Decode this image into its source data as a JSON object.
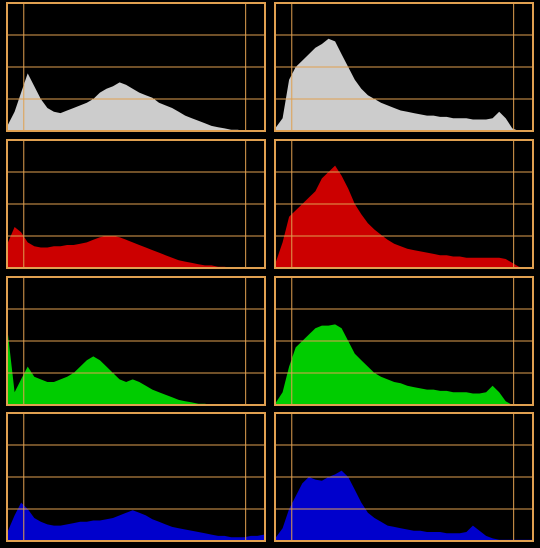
{
  "chart_data": [
    {
      "type": "area",
      "color": "#cccccc",
      "ylim": [
        0,
        100
      ],
      "yticks": [
        25,
        50,
        75
      ],
      "grid": true,
      "values": [
        5,
        15,
        30,
        45,
        35,
        25,
        18,
        15,
        14,
        16,
        18,
        20,
        22,
        25,
        30,
        33,
        35,
        38,
        36,
        33,
        30,
        28,
        26,
        22,
        20,
        18,
        15,
        12,
        10,
        8,
        6,
        4,
        3,
        2,
        1,
        1,
        0,
        0,
        0,
        0
      ]
    },
    {
      "type": "area",
      "color": "#cccccc",
      "ylim": [
        0,
        100
      ],
      "yticks": [
        25,
        50,
        75
      ],
      "grid": true,
      "values": [
        3,
        10,
        40,
        50,
        55,
        60,
        65,
        68,
        72,
        70,
        60,
        50,
        40,
        33,
        28,
        25,
        22,
        20,
        18,
        16,
        15,
        14,
        13,
        12,
        12,
        11,
        11,
        10,
        10,
        10,
        9,
        9,
        9,
        10,
        15,
        10,
        2,
        0,
        0,
        0
      ]
    },
    {
      "type": "area",
      "color": "#cc0000",
      "ylim": [
        0,
        100
      ],
      "yticks": [
        25,
        50,
        75
      ],
      "grid": true,
      "values": [
        20,
        32,
        28,
        20,
        17,
        16,
        16,
        17,
        17,
        18,
        18,
        19,
        20,
        22,
        24,
        25,
        25,
        24,
        22,
        20,
        18,
        16,
        14,
        12,
        10,
        8,
        6,
        5,
        4,
        3,
        2,
        2,
        1,
        1,
        0,
        0,
        0,
        0,
        0,
        0
      ]
    },
    {
      "type": "area",
      "color": "#cc0000",
      "ylim": [
        0,
        100
      ],
      "yticks": [
        25,
        50,
        75
      ],
      "grid": true,
      "values": [
        5,
        20,
        40,
        45,
        50,
        55,
        60,
        70,
        75,
        80,
        72,
        62,
        50,
        42,
        35,
        30,
        26,
        22,
        19,
        17,
        15,
        14,
        13,
        12,
        11,
        10,
        10,
        9,
        9,
        8,
        8,
        8,
        8,
        8,
        8,
        7,
        4,
        1,
        0,
        0
      ]
    },
    {
      "type": "area",
      "color": "#00cc00",
      "ylim": [
        0,
        100
      ],
      "yticks": [
        25,
        50,
        75
      ],
      "grid": true,
      "values": [
        55,
        10,
        20,
        30,
        22,
        20,
        18,
        18,
        20,
        22,
        25,
        30,
        35,
        38,
        35,
        30,
        25,
        20,
        18,
        20,
        18,
        15,
        12,
        10,
        8,
        6,
        4,
        3,
        2,
        1,
        1,
        0,
        0,
        0,
        0,
        0,
        0,
        0,
        0,
        0
      ]
    },
    {
      "type": "area",
      "color": "#00cc00",
      "ylim": [
        0,
        100
      ],
      "yticks": [
        25,
        50,
        75
      ],
      "grid": true,
      "values": [
        2,
        10,
        30,
        45,
        50,
        55,
        60,
        62,
        62,
        63,
        60,
        50,
        40,
        35,
        30,
        25,
        22,
        20,
        18,
        17,
        15,
        14,
        13,
        12,
        12,
        11,
        11,
        10,
        10,
        10,
        9,
        9,
        10,
        15,
        10,
        3,
        0,
        0,
        0,
        0
      ]
    },
    {
      "type": "area",
      "color": "#0000cc",
      "ylim": [
        0,
        100
      ],
      "yticks": [
        25,
        50,
        75
      ],
      "grid": true,
      "values": [
        8,
        20,
        30,
        25,
        18,
        15,
        13,
        12,
        12,
        13,
        14,
        15,
        15,
        16,
        16,
        17,
        18,
        20,
        22,
        24,
        22,
        20,
        17,
        15,
        13,
        11,
        10,
        9,
        8,
        7,
        6,
        5,
        4,
        4,
        3,
        3,
        3,
        4,
        4,
        5
      ]
    },
    {
      "type": "area",
      "color": "#0000cc",
      "ylim": [
        0,
        100
      ],
      "yticks": [
        25,
        50,
        75
      ],
      "grid": true,
      "values": [
        3,
        10,
        25,
        35,
        45,
        50,
        48,
        47,
        50,
        52,
        55,
        50,
        40,
        30,
        22,
        18,
        15,
        12,
        11,
        10,
        9,
        8,
        8,
        7,
        7,
        7,
        6,
        6,
        6,
        7,
        12,
        8,
        4,
        2,
        1,
        1,
        1,
        1,
        1,
        1
      ]
    }
  ]
}
